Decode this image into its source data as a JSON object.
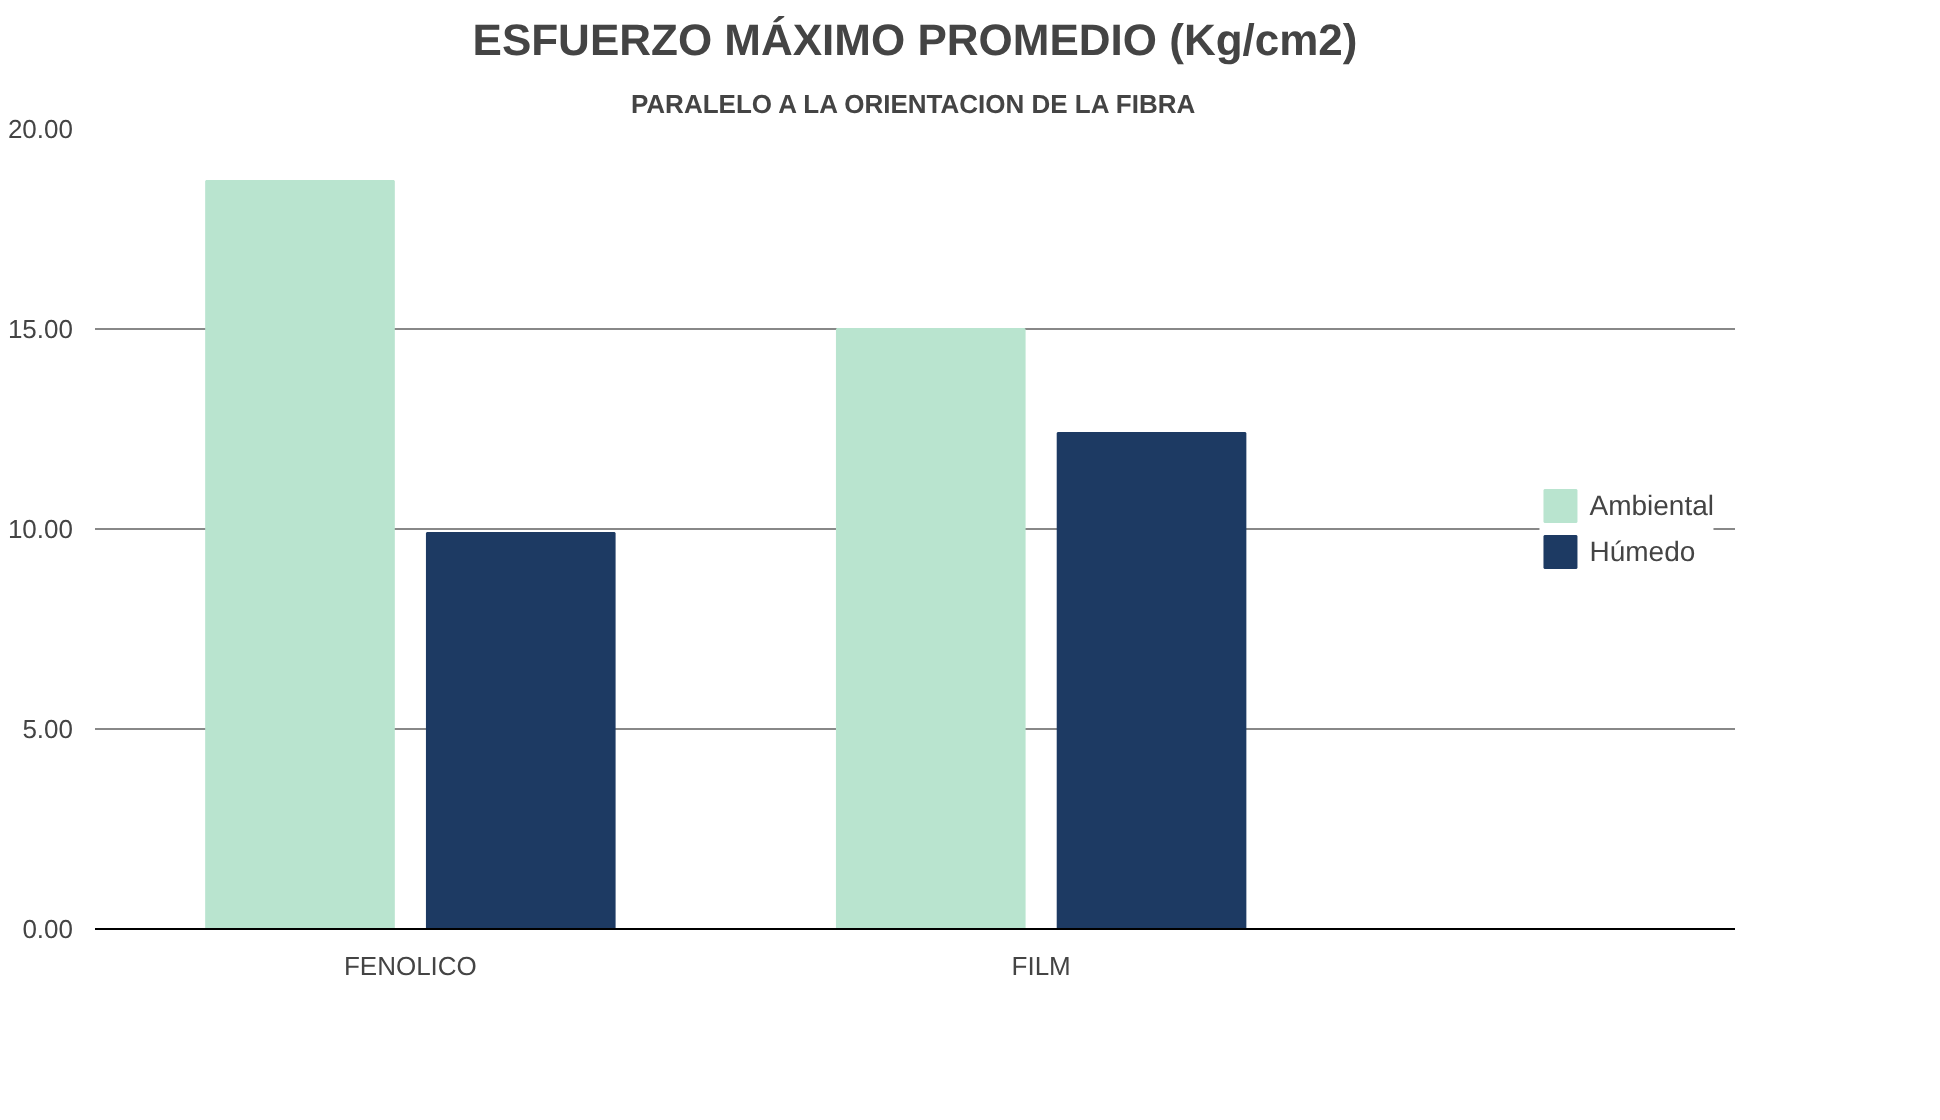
{
  "chart_data": {
    "type": "bar",
    "title": "ESFUERZO MÁXIMO PROMEDIO (Kg/cm2)",
    "subtitle": "PARALELO A LA ORIENTACION DE LA FIBRA",
    "categories": [
      "FENOLICO",
      "FILM"
    ],
    "series": [
      {
        "name": "Ambiental",
        "color": "#b9e4cf",
        "values": [
          18.7,
          15.0
        ]
      },
      {
        "name": "Húmedo",
        "color": "#1d3a63",
        "values": [
          9.9,
          12.4
        ]
      }
    ],
    "ylim": [
      0,
      20
    ],
    "yticks": [
      {
        "value": 0,
        "label": "0.00"
      },
      {
        "value": 5,
        "label": "5.00"
      },
      {
        "value": 10,
        "label": "10.00"
      },
      {
        "value": 15,
        "label": "15.00"
      },
      {
        "value": 20,
        "label": "20.00"
      }
    ],
    "grid": "y",
    "legend": "right"
  }
}
